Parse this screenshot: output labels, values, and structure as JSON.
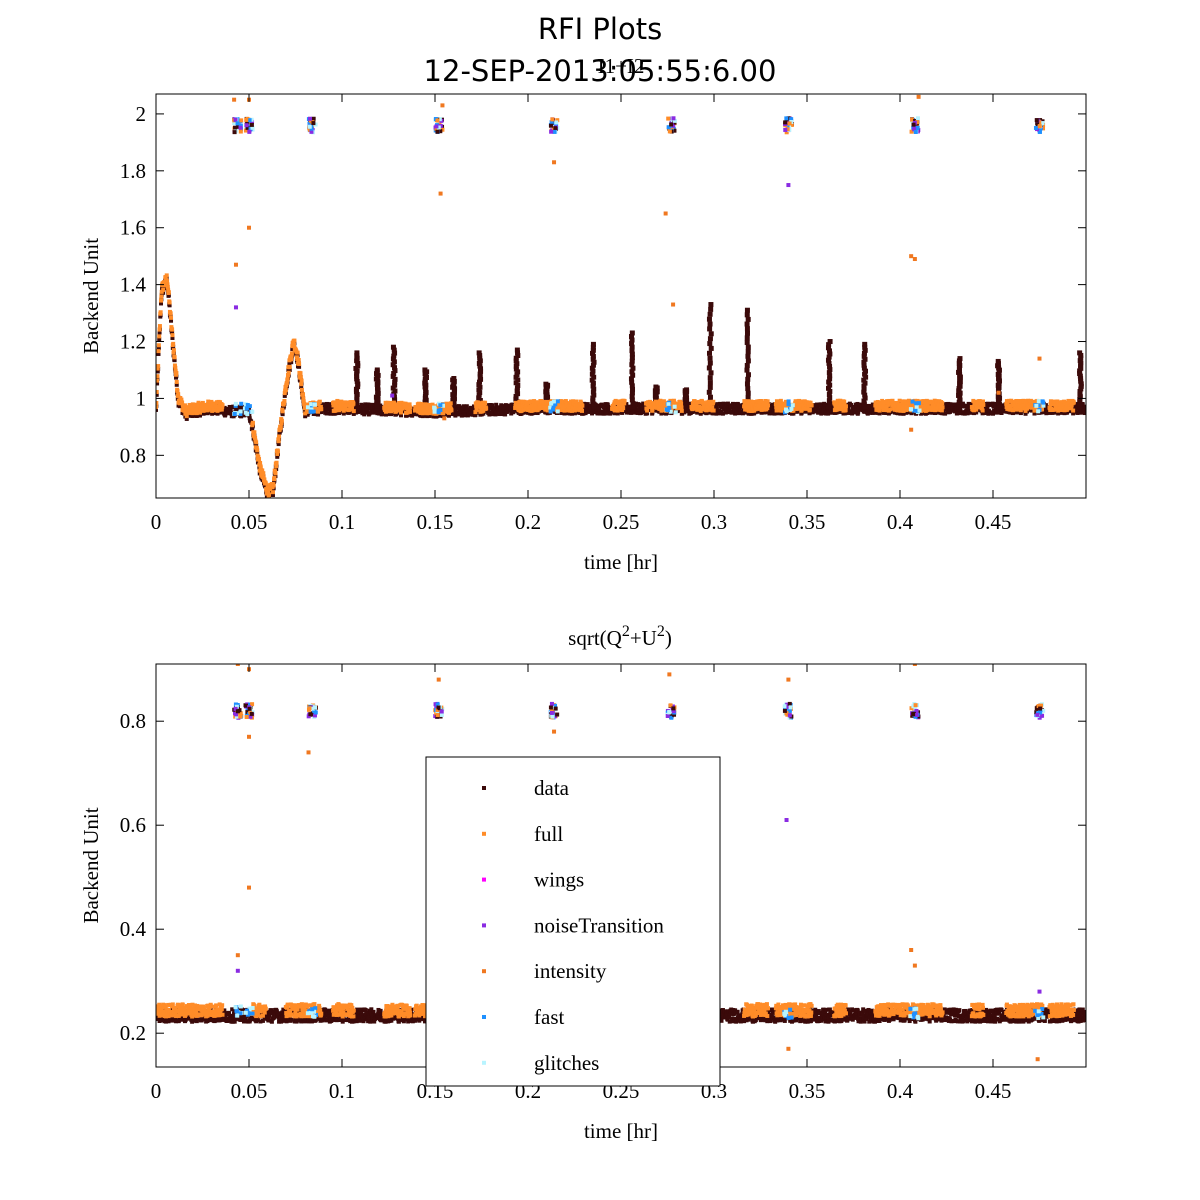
{
  "figure": {
    "title": "RFI Plots",
    "datetime": "12-SEP-2013:05:55:6.00"
  },
  "chart_data": [
    {
      "type": "scatter",
      "title": "I1+I2",
      "xlabel": "time [hr]",
      "ylabel": "Backend Unit",
      "xlim": [
        0,
        0.5
      ],
      "ylim": [
        0.65,
        2.07
      ],
      "xticks": [
        0,
        0.05,
        0.1,
        0.15,
        0.2,
        0.25,
        0.3,
        0.35,
        0.4,
        0.45
      ],
      "xtick_labels": [
        "0",
        "0.05",
        "0.1",
        "0.15",
        "0.2",
        "0.25",
        "0.3",
        "0.35",
        "0.4",
        "0.45"
      ],
      "yticks": [
        0.8,
        1,
        1.2,
        1.4,
        1.6,
        1.8,
        2
      ],
      "ytick_labels": [
        "0.8",
        "1",
        "1.2",
        "1.4",
        "1.6",
        "1.8",
        "2"
      ],
      "baseline_x": [
        0,
        0.003,
        0.006,
        0.009,
        0.012,
        0.016,
        0.02,
        0.03,
        0.04,
        0.045,
        0.05,
        0.052,
        0.056,
        0.06,
        0.063,
        0.066,
        0.07,
        0.074,
        0.076,
        0.08,
        0.09,
        0.1,
        0.15,
        0.2,
        0.25,
        0.3,
        0.35,
        0.4,
        0.45,
        0.5
      ],
      "baseline_y": [
        0.96,
        1.38,
        1.42,
        1.2,
        1.0,
        0.95,
        0.96,
        0.97,
        0.96,
        0.96,
        0.96,
        0.9,
        0.75,
        0.67,
        0.68,
        0.85,
        1.05,
        1.2,
        1.15,
        0.96,
        0.97,
        0.97,
        0.96,
        0.97,
        0.97,
        0.97,
        0.97,
        0.97,
        0.97,
        0.97
      ],
      "spikes": [
        {
          "x": 0.108,
          "y": 1.16
        },
        {
          "x": 0.119,
          "y": 1.1
        },
        {
          "x": 0.128,
          "y": 1.18
        },
        {
          "x": 0.145,
          "y": 1.1
        },
        {
          "x": 0.16,
          "y": 1.07
        },
        {
          "x": 0.174,
          "y": 1.16
        },
        {
          "x": 0.194,
          "y": 1.17
        },
        {
          "x": 0.21,
          "y": 1.05
        },
        {
          "x": 0.235,
          "y": 1.19
        },
        {
          "x": 0.256,
          "y": 1.23
        },
        {
          "x": 0.269,
          "y": 1.04
        },
        {
          "x": 0.285,
          "y": 1.03
        },
        {
          "x": 0.298,
          "y": 1.33
        },
        {
          "x": 0.318,
          "y": 1.31
        },
        {
          "x": 0.362,
          "y": 1.2
        },
        {
          "x": 0.381,
          "y": 1.19
        },
        {
          "x": 0.432,
          "y": 1.14
        },
        {
          "x": 0.453,
          "y": 1.13
        },
        {
          "x": 0.497,
          "y": 1.16
        }
      ],
      "clusters_x": [
        0.044,
        0.05,
        0.084,
        0.152,
        0.214,
        0.277,
        0.34,
        0.408,
        0.475
      ],
      "cluster_center_y": 1.96,
      "outliers": [
        {
          "x": 0.042,
          "y": 2.05
        },
        {
          "x": 0.05,
          "y": 2.05
        },
        {
          "x": 0.043,
          "y": 1.47
        },
        {
          "x": 0.05,
          "y": 1.6
        },
        {
          "x": 0.043,
          "y": 1.32
        },
        {
          "x": 0.154,
          "y": 2.03
        },
        {
          "x": 0.153,
          "y": 1.72
        },
        {
          "x": 0.214,
          "y": 1.83
        },
        {
          "x": 0.274,
          "y": 1.65
        },
        {
          "x": 0.34,
          "y": 1.75
        },
        {
          "x": 0.406,
          "y": 1.5
        },
        {
          "x": 0.408,
          "y": 1.49
        },
        {
          "x": 0.41,
          "y": 2.06
        },
        {
          "x": 0.278,
          "y": 1.33
        },
        {
          "x": 0.127,
          "y": 1.01
        },
        {
          "x": 0.155,
          "y": 0.93
        },
        {
          "x": 0.406,
          "y": 0.89
        },
        {
          "x": 0.475,
          "y": 1.14
        },
        {
          "x": 0.453,
          "y": 1.02
        }
      ],
      "series": [
        {
          "name": "data",
          "color": "#3b0a0a"
        },
        {
          "name": "full",
          "color": "#ff8c28"
        },
        {
          "name": "wings",
          "color": "#ff00ff"
        },
        {
          "name": "noiseTransition",
          "color": "#8a2be2"
        },
        {
          "name": "intensity",
          "color": "#f07820"
        },
        {
          "name": "fast",
          "color": "#1e90ff"
        },
        {
          "name": "glitches",
          "color": "#b8f4ff"
        }
      ]
    },
    {
      "type": "scatter",
      "title_base": "sqrt(Q",
      "title_sup1": "2",
      "title_mid": "+U",
      "title_sup2": "2",
      "title_end": ")",
      "xlabel": "time [hr]",
      "ylabel": "Backend Unit",
      "xlim": [
        0,
        0.5
      ],
      "ylim": [
        0.135,
        0.91
      ],
      "xticks": [
        0,
        0.05,
        0.1,
        0.15,
        0.2,
        0.25,
        0.3,
        0.35,
        0.4,
        0.45
      ],
      "xtick_labels": [
        "0",
        "0.05",
        "0.1",
        "0.15",
        "0.2",
        "0.25",
        "0.3",
        "0.35",
        "0.4",
        "0.45"
      ],
      "yticks": [
        0.2,
        0.4,
        0.6,
        0.8
      ],
      "ytick_labels": [
        "0.2",
        "0.4",
        "0.6",
        "0.8"
      ],
      "baseline_level": 0.24,
      "clusters_x": [
        0.044,
        0.05,
        0.084,
        0.152,
        0.214,
        0.277,
        0.34,
        0.408,
        0.475
      ],
      "cluster_center_y": 0.82,
      "outliers": [
        {
          "x": 0.044,
          "y": 0.91
        },
        {
          "x": 0.05,
          "y": 0.9
        },
        {
          "x": 0.05,
          "y": 0.77
        },
        {
          "x": 0.044,
          "y": 0.35
        },
        {
          "x": 0.044,
          "y": 0.32
        },
        {
          "x": 0.05,
          "y": 0.48
        },
        {
          "x": 0.082,
          "y": 0.74
        },
        {
          "x": 0.152,
          "y": 0.88
        },
        {
          "x": 0.276,
          "y": 0.89
        },
        {
          "x": 0.339,
          "y": 0.61
        },
        {
          "x": 0.34,
          "y": 0.88
        },
        {
          "x": 0.408,
          "y": 0.91
        },
        {
          "x": 0.406,
          "y": 0.36
        },
        {
          "x": 0.408,
          "y": 0.33
        },
        {
          "x": 0.475,
          "y": 0.28
        },
        {
          "x": 0.474,
          "y": 0.15
        },
        {
          "x": 0.34,
          "y": 0.17
        },
        {
          "x": 0.214,
          "y": 0.78
        }
      ],
      "legend": {
        "position": "center",
        "entries": [
          "data",
          "full",
          "wings",
          "noiseTransition",
          "intensity",
          "fast",
          "glitches"
        ]
      }
    }
  ]
}
